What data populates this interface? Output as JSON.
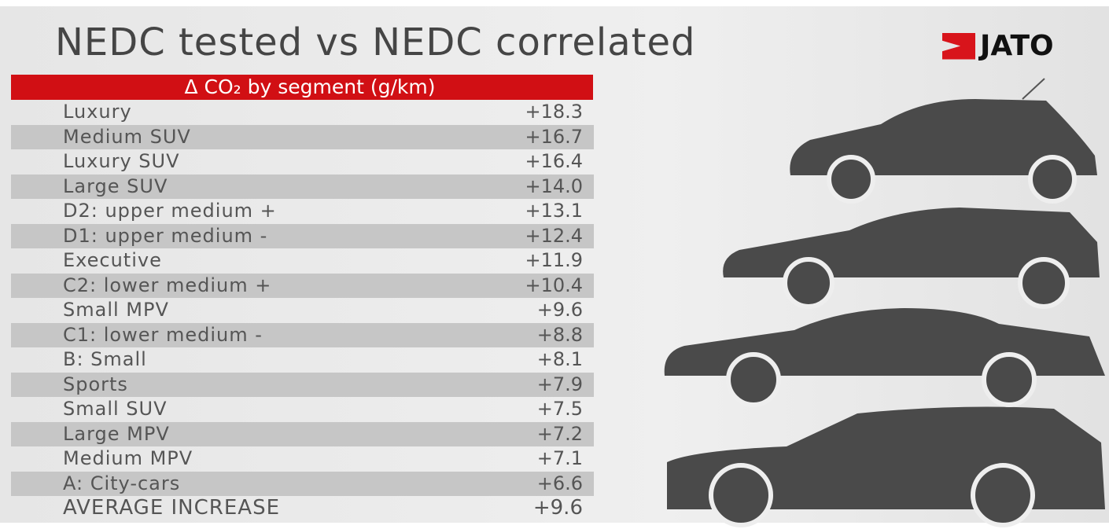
{
  "header": {
    "title": "NEDC tested vs NEDC correlated",
    "logo": "JATO"
  },
  "table": {
    "heading": "Δ CO₂ by segment (g/km)",
    "rows": [
      [
        "Luxury",
        "+18.3"
      ],
      [
        "Medium SUV",
        "+16.7"
      ],
      [
        "Luxury SUV",
        "+16.4"
      ],
      [
        "Large SUV",
        "+14.0"
      ],
      [
        "D2: upper medium +",
        "+13.1"
      ],
      [
        "D1: upper medium -",
        "+12.4"
      ],
      [
        "Executive",
        "+11.9"
      ],
      [
        "C2: lower medium +",
        "+10.4"
      ],
      [
        "Small MPV",
        "+9.6"
      ],
      [
        "C1: lower medium -",
        "+8.8"
      ],
      [
        "B: Small",
        "+8.1"
      ],
      [
        "Sports",
        "+7.9"
      ],
      [
        "Small SUV",
        "+7.5"
      ],
      [
        "Large MPV",
        "+7.2"
      ],
      [
        "Medium MPV",
        "+7.1"
      ],
      [
        "A: City-cars",
        "+6.6"
      ],
      [
        "AVERAGE INCREASE",
        "+9.6"
      ]
    ]
  }
}
